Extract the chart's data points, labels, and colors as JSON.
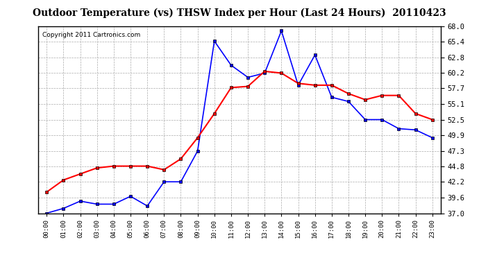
{
  "title": "Outdoor Temperature (vs) THSW Index per Hour (Last 24 Hours)  20110423",
  "copyright": "Copyright 2011 Cartronics.com",
  "hours": [
    "00:00",
    "01:00",
    "02:00",
    "03:00",
    "04:00",
    "05:00",
    "06:00",
    "07:00",
    "08:00",
    "09:00",
    "10:00",
    "11:00",
    "12:00",
    "13:00",
    "14:00",
    "15:00",
    "16:00",
    "17:00",
    "18:00",
    "19:00",
    "20:00",
    "21:00",
    "22:00",
    "23:00"
  ],
  "temp": [
    37.0,
    37.8,
    39.0,
    38.5,
    38.5,
    39.8,
    38.2,
    42.2,
    42.2,
    47.3,
    65.5,
    61.5,
    59.5,
    60.2,
    67.2,
    58.2,
    63.2,
    56.2,
    55.5,
    52.5,
    52.5,
    51.0,
    50.8,
    49.5
  ],
  "thsw": [
    40.5,
    42.5,
    43.5,
    44.5,
    44.8,
    44.8,
    44.8,
    44.2,
    46.0,
    49.5,
    53.5,
    57.8,
    58.0,
    60.5,
    60.2,
    58.5,
    58.2,
    58.2,
    56.8,
    55.8,
    56.5,
    56.5,
    53.5,
    52.5
  ],
  "blue_color": "#0000FF",
  "red_color": "#FF0000",
  "bg_color": "#FFFFFF",
  "grid_color": "#AAAAAA",
  "ymin": 37.0,
  "ymax": 68.0,
  "yticks": [
    37.0,
    39.6,
    42.2,
    44.8,
    47.3,
    49.9,
    52.5,
    55.1,
    57.7,
    60.2,
    62.8,
    65.4,
    68.0
  ]
}
